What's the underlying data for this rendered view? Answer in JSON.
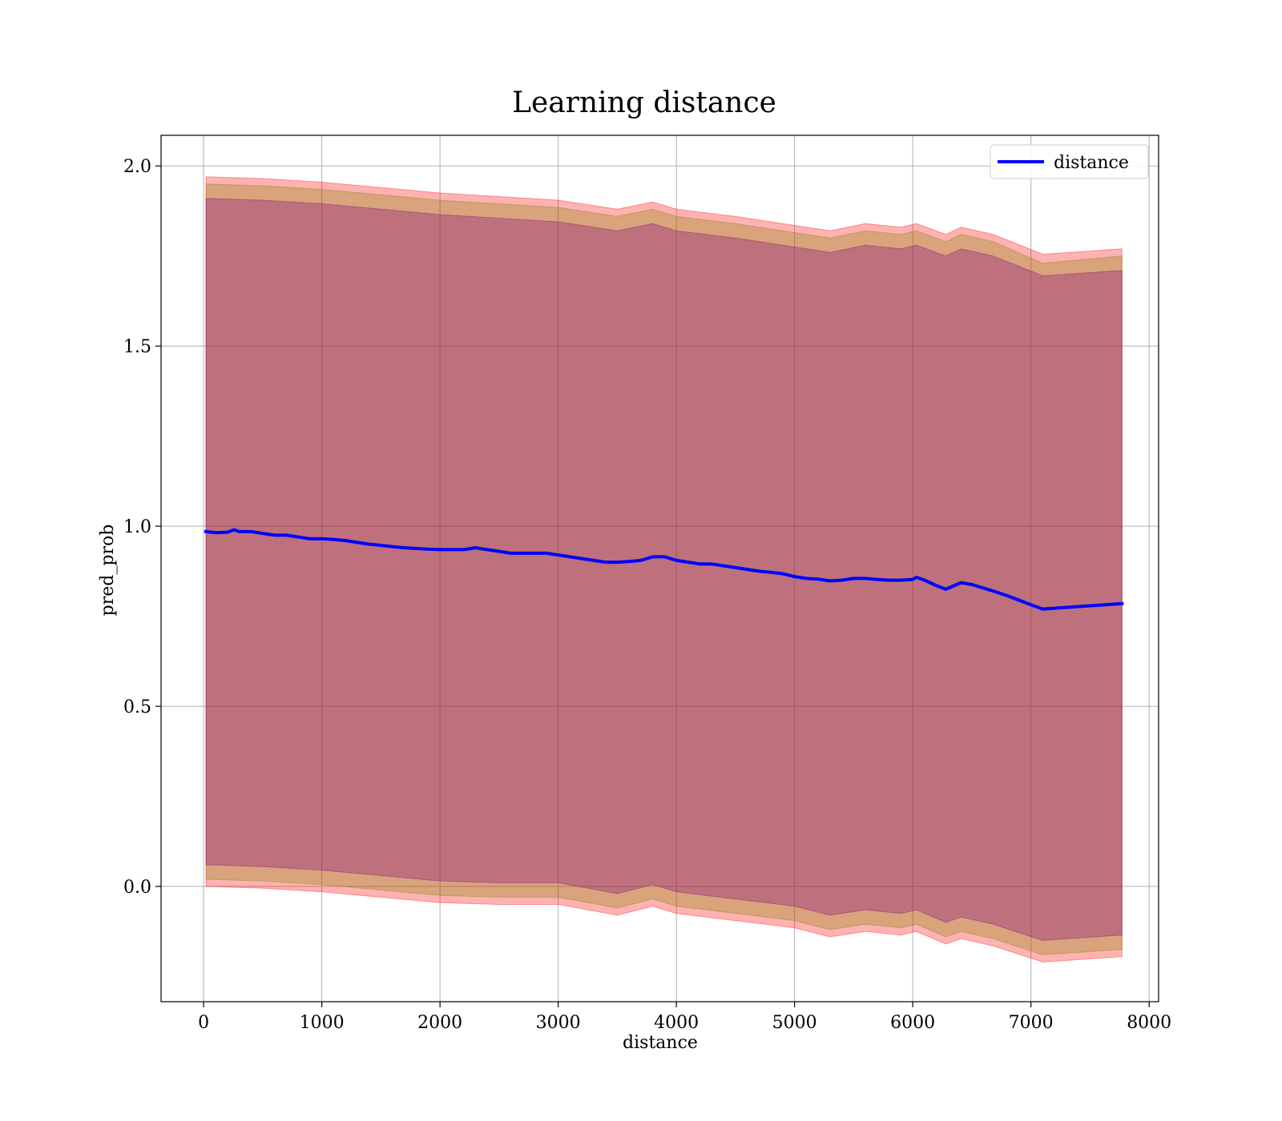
{
  "chart_data": {
    "type": "line",
    "title": "Learning distance",
    "xlabel": "distance",
    "ylabel": "pred_prob",
    "xlim": [
      -360,
      8080
    ],
    "ylim": [
      -0.32,
      2.085
    ],
    "xticks": [
      0,
      1000,
      2000,
      3000,
      4000,
      5000,
      6000,
      7000,
      8000
    ],
    "xtick_labels": [
      "0",
      "1000",
      "2000",
      "3000",
      "4000",
      "5000",
      "6000",
      "7000",
      "8000"
    ],
    "yticks": [
      0.0,
      0.5,
      1.0,
      1.5,
      2.0
    ],
    "ytick_labels": [
      "0.0",
      "0.5",
      "1.0",
      "1.5",
      "2.0"
    ],
    "grid": true,
    "legend_position": "top-right",
    "series": [
      {
        "name": "distance",
        "color": "#0000ff",
        "x": [
          20,
          100,
          200,
          260,
          300,
          400,
          500,
          600,
          700,
          800,
          900,
          1000,
          1100,
          1200,
          1300,
          1400,
          1500,
          1600,
          1700,
          1800,
          1900,
          2000,
          2100,
          2200,
          2300,
          2400,
          2500,
          2600,
          2700,
          2800,
          2900,
          3000,
          3100,
          3200,
          3300,
          3400,
          3500,
          3600,
          3700,
          3800,
          3900,
          4000,
          4100,
          4200,
          4300,
          4400,
          4500,
          4600,
          4700,
          4800,
          4900,
          5000,
          5100,
          5200,
          5300,
          5400,
          5500,
          5600,
          5700,
          5800,
          5900,
          6000,
          6030,
          6100,
          6200,
          6280,
          6350,
          6410,
          6500,
          6680,
          6800,
          7000,
          7100,
          7770
        ],
        "y": [
          0.985,
          0.982,
          0.983,
          0.99,
          0.985,
          0.985,
          0.98,
          0.975,
          0.975,
          0.97,
          0.965,
          0.965,
          0.963,
          0.96,
          0.955,
          0.95,
          0.947,
          0.943,
          0.94,
          0.938,
          0.936,
          0.935,
          0.935,
          0.935,
          0.94,
          0.935,
          0.93,
          0.925,
          0.925,
          0.925,
          0.925,
          0.92,
          0.915,
          0.91,
          0.905,
          0.9,
          0.9,
          0.902,
          0.905,
          0.915,
          0.915,
          0.905,
          0.9,
          0.895,
          0.895,
          0.89,
          0.885,
          0.88,
          0.875,
          0.872,
          0.868,
          0.86,
          0.855,
          0.853,
          0.848,
          0.85,
          0.855,
          0.855,
          0.852,
          0.85,
          0.85,
          0.852,
          0.858,
          0.85,
          0.835,
          0.825,
          0.835,
          0.843,
          0.838,
          0.82,
          0.807,
          0.782,
          0.77,
          0.785
        ]
      }
    ],
    "bands": [
      {
        "color": "#ff0000",
        "opacity": 0.3,
        "x": [
          20,
          500,
          1000,
          1500,
          2000,
          2500,
          3000,
          3500,
          3800,
          4000,
          4500,
          5000,
          5300,
          5600,
          5900,
          6030,
          6280,
          6410,
          6680,
          7100,
          7770
        ],
        "upper": [
          1.97,
          1.965,
          1.955,
          1.94,
          1.925,
          1.915,
          1.905,
          1.88,
          1.9,
          1.88,
          1.86,
          1.835,
          1.82,
          1.84,
          1.83,
          1.84,
          1.81,
          1.83,
          1.81,
          1.755,
          1.77
        ],
        "lower": [
          0.0,
          -0.005,
          -0.015,
          -0.03,
          -0.045,
          -0.05,
          -0.05,
          -0.08,
          -0.055,
          -0.075,
          -0.095,
          -0.115,
          -0.14,
          -0.125,
          -0.135,
          -0.125,
          -0.16,
          -0.145,
          -0.165,
          -0.21,
          -0.195
        ]
      },
      {
        "color": "#808000",
        "opacity": 0.3,
        "x": [
          20,
          500,
          1000,
          1500,
          2000,
          2500,
          3000,
          3500,
          3800,
          4000,
          4500,
          5000,
          5300,
          5600,
          5900,
          6030,
          6280,
          6410,
          6680,
          7100,
          7770
        ],
        "upper": [
          1.95,
          1.945,
          1.935,
          1.92,
          1.905,
          1.895,
          1.885,
          1.86,
          1.88,
          1.86,
          1.84,
          1.815,
          1.8,
          1.82,
          1.81,
          1.82,
          1.79,
          1.81,
          1.79,
          1.73,
          1.75
        ],
        "lower": [
          0.02,
          0.015,
          0.005,
          -0.01,
          -0.025,
          -0.03,
          -0.03,
          -0.06,
          -0.035,
          -0.055,
          -0.075,
          -0.095,
          -0.12,
          -0.105,
          -0.115,
          -0.105,
          -0.14,
          -0.125,
          -0.145,
          -0.19,
          -0.175
        ]
      },
      {
        "color": "#800080",
        "opacity": 0.3,
        "x": [
          20,
          500,
          1000,
          1500,
          2000,
          2500,
          3000,
          3500,
          3800,
          4000,
          4500,
          5000,
          5300,
          5600,
          5900,
          6030,
          6280,
          6410,
          6680,
          7100,
          7770
        ],
        "upper": [
          1.91,
          1.905,
          1.895,
          1.88,
          1.865,
          1.855,
          1.845,
          1.82,
          1.84,
          1.82,
          1.8,
          1.775,
          1.76,
          1.78,
          1.77,
          1.78,
          1.75,
          1.77,
          1.75,
          1.695,
          1.71
        ],
        "lower": [
          0.06,
          0.055,
          0.045,
          0.03,
          0.015,
          0.01,
          0.01,
          -0.02,
          0.005,
          -0.015,
          -0.035,
          -0.055,
          -0.08,
          -0.065,
          -0.075,
          -0.065,
          -0.1,
          -0.085,
          -0.105,
          -0.15,
          -0.135
        ]
      }
    ]
  }
}
